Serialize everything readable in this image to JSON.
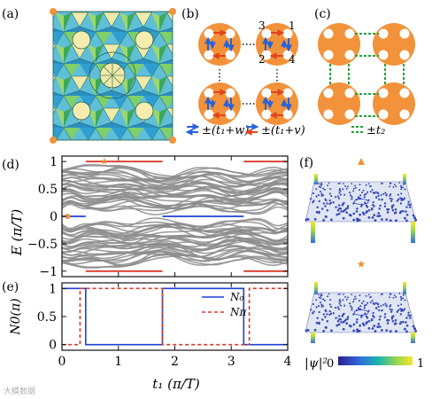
{
  "panels": {
    "a": "(a)",
    "b": "(b)",
    "c": "(c)",
    "d": "(d)",
    "e": "(e)",
    "f": "(f)"
  },
  "panel_b": {
    "site_labels": [
      "3",
      "1",
      "2",
      "4"
    ],
    "legend": [
      {
        "label": "±(t₁+w)",
        "colors": [
          "#2563d9",
          "#2563d9"
        ]
      },
      {
        "label": "±(t₁+v)",
        "colors": [
          "#2563d9",
          "#e2441c"
        ]
      }
    ]
  },
  "panel_c": {
    "legend": {
      "label": "±t₂",
      "color": "#22a33a"
    }
  },
  "colors": {
    "disk": "#f2923b",
    "hop_blue": "#2563d9",
    "hop_red": "#e2441c",
    "hop_green": "#22a33a",
    "spectrum_gray": "#8c8c8c",
    "zero_mode": "#1f3fd6",
    "pi_mode": "#d83a2a",
    "marker": "#f2923b"
  },
  "chart_data": [
    {
      "id": "d",
      "type": "line",
      "ylabel": "E (π/T)",
      "ylim": [
        -1.1,
        1.1
      ],
      "xlim": [
        0,
        4
      ],
      "yticks": [
        "−1",
        "−0.5",
        "0",
        "0.5",
        "1"
      ],
      "series": [
        {
          "role": "zero-mode",
          "x": [
            0,
            0.42
          ],
          "y": [
            0,
            0
          ]
        },
        {
          "role": "zero-mode",
          "x": [
            1.78,
            3.22
          ],
          "y": [
            0,
            0
          ]
        },
        {
          "role": "pi-mode",
          "x": [
            0.42,
            1.78
          ],
          "y": [
            1,
            1
          ]
        },
        {
          "role": "pi-mode",
          "x": [
            3.22,
            4
          ],
          "y": [
            1,
            1
          ]
        }
      ],
      "markers": [
        {
          "shape": "circle",
          "x": 0.1,
          "y": 0
        },
        {
          "shape": "star",
          "x": 0.75,
          "y": 1
        }
      ]
    },
    {
      "id": "e",
      "type": "line",
      "xlabel": "t₁ (π/T)",
      "ylabel": "N0(π)",
      "xlim": [
        0,
        4
      ],
      "ylim": [
        -0.1,
        1.1
      ],
      "xticks": [
        "0",
        "1",
        "2",
        "3",
        "4"
      ],
      "yticks": [
        "0",
        "0.5",
        "1"
      ],
      "series": [
        {
          "name": "N₀",
          "x": [
            0,
            0.42,
            0.42,
            1.78,
            1.78,
            3.22,
            3.22,
            4
          ],
          "y": [
            1,
            1,
            0,
            0,
            1,
            1,
            0,
            0
          ]
        },
        {
          "name": "Nπ",
          "x": [
            0,
            0.32,
            0.32,
            1.78,
            1.78,
            3.32,
            3.32,
            4
          ],
          "y": [
            0,
            0,
            1,
            1,
            0,
            0,
            1,
            1
          ]
        }
      ]
    }
  ],
  "panel_f": {
    "colorbar": {
      "label": "|ψ|²",
      "min": "0",
      "max": "1"
    },
    "markers": [
      "triangle",
      "star"
    ]
  },
  "watermark": "大模数据"
}
